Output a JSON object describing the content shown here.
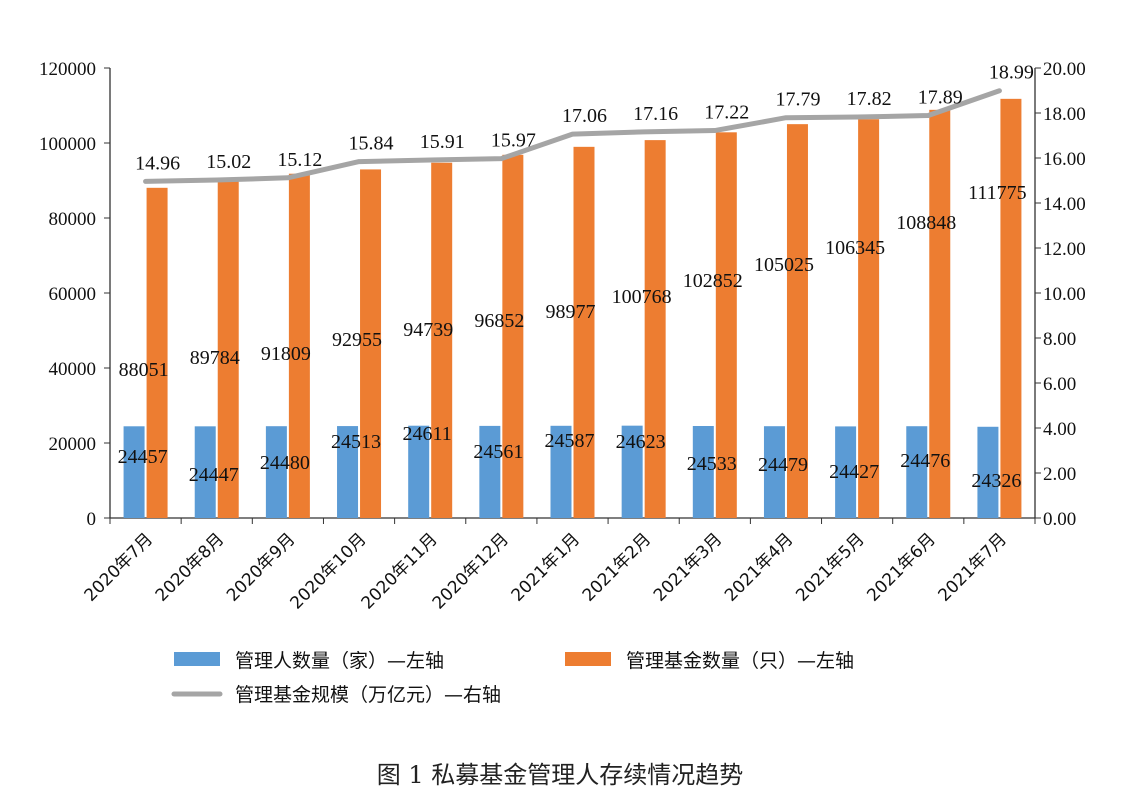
{
  "chart_data": {
    "type": "bar",
    "caption": "图 1  私募基金管理人存续情况趋势",
    "categories": [
      "2020年7月",
      "2020年8月",
      "2020年9月",
      "2020年10月",
      "2020年11月",
      "2020年12月",
      "2021年1月",
      "2021年2月",
      "2021年3月",
      "2021年4月",
      "2021年5月",
      "2021年6月",
      "2021年7月"
    ],
    "series": [
      {
        "name": "管理人数量（家）—左轴",
        "kind": "bar",
        "axis": "left",
        "color": "#5b9bd5",
        "values": [
          24457,
          24447,
          24480,
          24513,
          24611,
          24561,
          24587,
          24623,
          24533,
          24479,
          24427,
          24476,
          24326
        ]
      },
      {
        "name": "管理基金数量（只）—左轴",
        "kind": "bar",
        "axis": "left",
        "color": "#ed7d31",
        "values": [
          88051,
          89784,
          91809,
          92955,
          94739,
          96852,
          98977,
          100768,
          102852,
          105025,
          106345,
          108848,
          111775
        ]
      },
      {
        "name": "管理基金规模（万亿元）—右轴",
        "kind": "line",
        "axis": "right",
        "color": "#a5a5a5",
        "values": [
          14.96,
          15.02,
          15.12,
          15.84,
          15.91,
          15.97,
          17.06,
          17.16,
          17.22,
          17.79,
          17.82,
          17.89,
          18.99
        ]
      }
    ],
    "y_left": {
      "min": 0,
      "max": 120000,
      "ticks": [
        "0",
        "20000",
        "40000",
        "60000",
        "80000",
        "100000",
        "120000"
      ]
    },
    "y_right": {
      "min": 0,
      "max": 20,
      "ticks": [
        "0.00",
        "2.00",
        "4.00",
        "6.00",
        "8.00",
        "10.00",
        "12.00",
        "14.00",
        "16.00",
        "18.00",
        "20.00"
      ]
    },
    "grid": false,
    "legend": "bottom"
  }
}
